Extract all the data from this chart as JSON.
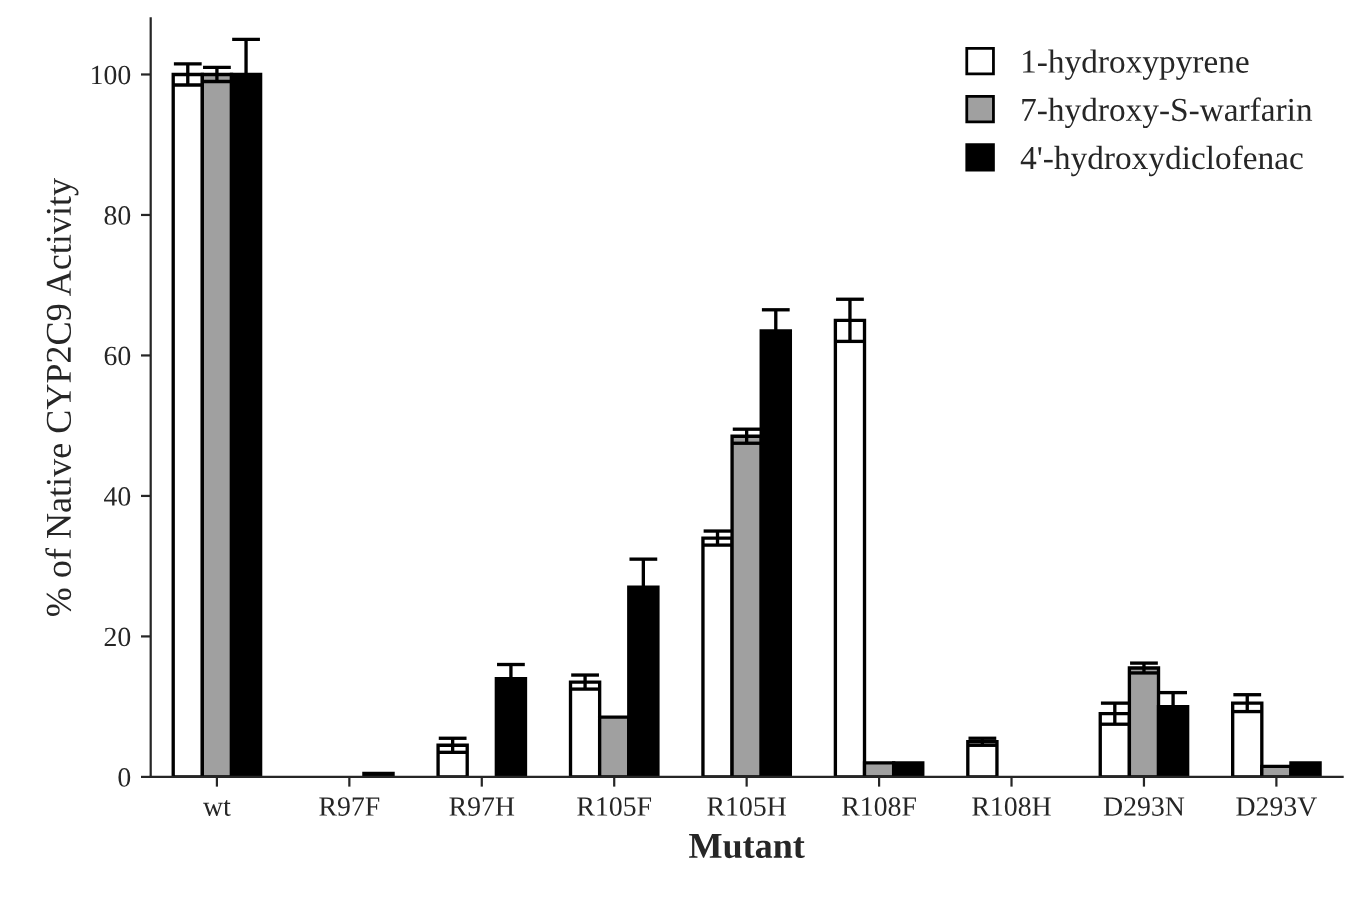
{
  "chart_data": {
    "type": "bar",
    "xlabel": "Mutant",
    "ylabel": "% of Native CYP2C9 Activity",
    "categories": [
      "wt",
      "R97F",
      "R97H",
      "R105F",
      "R105H",
      "R108F",
      "R108H",
      "D293N",
      "D293V"
    ],
    "series": [
      {
        "name": "1-hydroxypyrene",
        "color": "#ffffff",
        "values": [
          100,
          null,
          4.5,
          13.5,
          34,
          65,
          5,
          9,
          10.5
        ],
        "errors": [
          1.5,
          null,
          1,
          1,
          1,
          3,
          0.5,
          1.5,
          1.2
        ]
      },
      {
        "name": "7-hydroxy-S-warfarin",
        "color": "#a0a0a0",
        "values": [
          100,
          null,
          null,
          8.5,
          48.5,
          2,
          null,
          15.5,
          1.5
        ],
        "errors": [
          1,
          null,
          null,
          null,
          1,
          null,
          null,
          0.7,
          null
        ]
      },
      {
        "name": "4'-hydroxydiclofenac",
        "color": "#000000",
        "values": [
          100,
          0.5,
          14,
          27,
          63.5,
          2,
          null,
          10,
          2
        ],
        "errors": [
          5,
          null,
          2,
          4,
          3,
          null,
          null,
          2,
          null
        ]
      }
    ],
    "ylim": [
      0,
      108
    ],
    "yticks": [
      0,
      20,
      40,
      60,
      80,
      100
    ],
    "grid": false,
    "legend": "top right"
  }
}
